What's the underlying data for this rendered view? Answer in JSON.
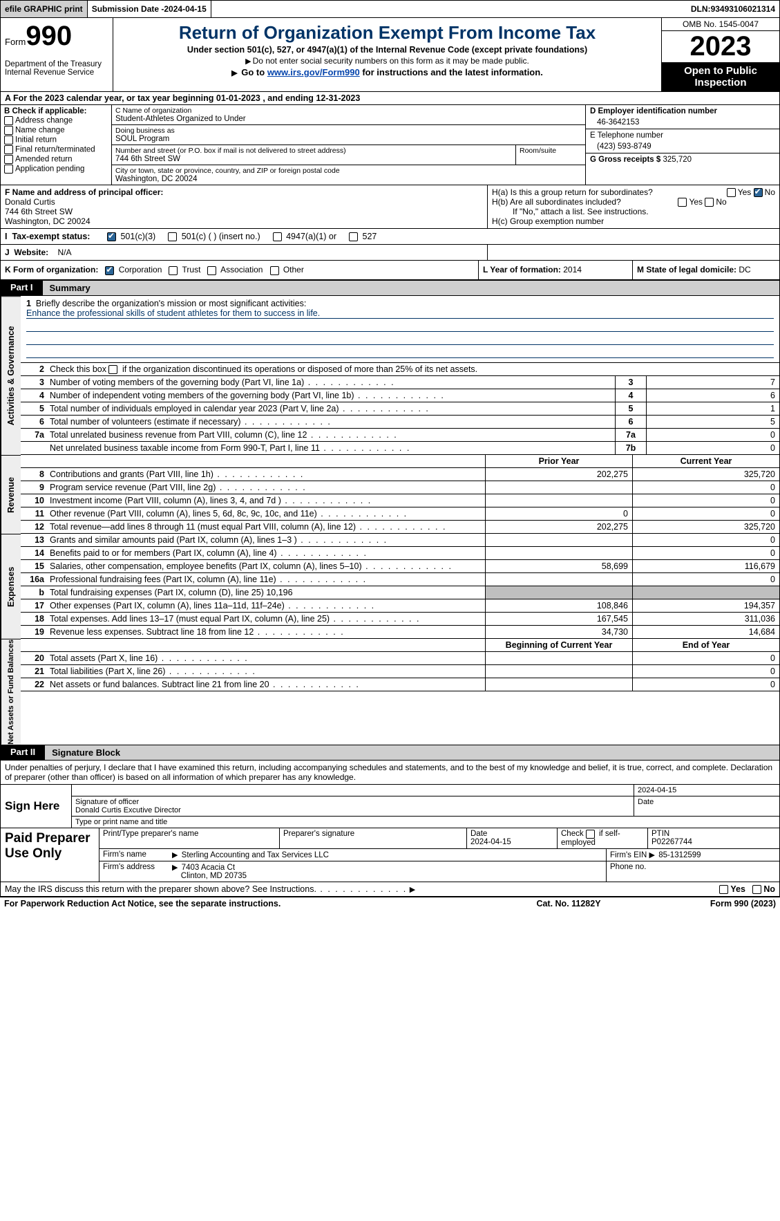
{
  "topbar": {
    "efile": "efile GRAPHIC print",
    "subdate_label": "Submission Date - ",
    "subdate": "2024-04-15",
    "dln_label": "DLN: ",
    "dln": "93493106021314"
  },
  "header": {
    "form_word": "Form",
    "form_num": "990",
    "dept": "Department of the Treasury\nInternal Revenue Service",
    "title": "Return of Organization Exempt From Income Tax",
    "subtitle": "Under section 501(c), 527, or 4947(a)(1) of the Internal Revenue Code (except private foundations)",
    "warn": "Do not enter social security numbers on this form as it may be made public.",
    "goto_pre": "Go to ",
    "goto_link": "www.irs.gov/Form990",
    "goto_post": " for instructions and the latest information.",
    "omb": "OMB No. 1545-0047",
    "year": "2023",
    "open": "Open to Public Inspection"
  },
  "rowA": {
    "text": "A For the 2023 calendar year, or tax year beginning 01-01-2023    , and ending 12-31-2023"
  },
  "colB": {
    "label": "B Check if applicable:",
    "opts": [
      "Address change",
      "Name change",
      "Initial return",
      "Final return/terminated",
      "Amended return",
      "Application pending"
    ]
  },
  "colC": {
    "name_lbl": "C Name of organization",
    "name": "Student-Athletes Organized to Under",
    "dba_lbl": "Doing business as",
    "dba": "SOUL Program",
    "street_lbl": "Number and street (or P.O. box if mail is not delivered to street address)",
    "street": "744 6th Street SW",
    "room_lbl": "Room/suite",
    "city_lbl": "City or town, state or province, country, and ZIP or foreign postal code",
    "city": "Washington, DC  20024"
  },
  "colD": {
    "ein_lbl": "D Employer identification number",
    "ein": "46-3642153",
    "tel_lbl": "E Telephone number",
    "tel": "(423) 593-8749",
    "gross_lbl": "G Gross receipts $ ",
    "gross": "325,720"
  },
  "F": {
    "lbl": "F  Name and address of principal officer:",
    "name": "Donald Curtis",
    "addr1": "744 6th Street SW",
    "addr2": "Washington, DC  20024"
  },
  "H": {
    "a": "H(a)  Is this a group return for subordinates?",
    "b": "H(b)  Are all subordinates included?",
    "note": "If \"No,\" attach a list. See instructions.",
    "c": "H(c)  Group exemption number",
    "yes": "Yes",
    "no": "No"
  },
  "I": {
    "lbl": "Tax-exempt status:",
    "o1": "501(c)(3)",
    "o2": "501(c) (  ) (insert no.)",
    "o3": "4947(a)(1) or",
    "o4": "527"
  },
  "J": {
    "lbl": "Website:",
    "val": "N/A"
  },
  "K": {
    "lbl": "K Form of organization:",
    "opts": [
      "Corporation",
      "Trust",
      "Association",
      "Other"
    ]
  },
  "L": {
    "lbl": "L Year of formation: ",
    "val": "2014"
  },
  "M": {
    "lbl": "M State of legal domicile: ",
    "val": "DC"
  },
  "partI": {
    "tab": "Part I",
    "title": "Summary"
  },
  "mission": {
    "q": "Briefly describe the organization's mission or most significant activities:",
    "text": "Enhance the professional skills of student athletes for them to success in life."
  },
  "line2": "Check this box  if the organization discontinued its operations or disposed of more than 25% of its net assets.",
  "gov_lines": [
    {
      "n": "3",
      "d": "Number of voting members of the governing body (Part VI, line 1a)",
      "k": "3",
      "v": "7"
    },
    {
      "n": "4",
      "d": "Number of independent voting members of the governing body (Part VI, line 1b)",
      "k": "4",
      "v": "6"
    },
    {
      "n": "5",
      "d": "Total number of individuals employed in calendar year 2023 (Part V, line 2a)",
      "k": "5",
      "v": "1"
    },
    {
      "n": "6",
      "d": "Total number of volunteers (estimate if necessary)",
      "k": "6",
      "v": "5"
    },
    {
      "n": "7a",
      "d": "Total unrelated business revenue from Part VIII, column (C), line 12",
      "k": "7a",
      "v": "0"
    },
    {
      "n": "",
      "d": "Net unrelated business taxable income from Form 990-T, Part I, line 11",
      "k": "7b",
      "v": "0"
    }
  ],
  "pycy_hdr": {
    "py": "Prior Year",
    "cy": "Current Year"
  },
  "rev_lines": [
    {
      "n": "8",
      "d": "Contributions and grants (Part VIII, line 1h)",
      "py": "202,275",
      "cy": "325,720"
    },
    {
      "n": "9",
      "d": "Program service revenue (Part VIII, line 2g)",
      "py": "",
      "cy": "0"
    },
    {
      "n": "10",
      "d": "Investment income (Part VIII, column (A), lines 3, 4, and 7d )",
      "py": "",
      "cy": "0"
    },
    {
      "n": "11",
      "d": "Other revenue (Part VIII, column (A), lines 5, 6d, 8c, 9c, 10c, and 11e)",
      "py": "0",
      "cy": "0"
    },
    {
      "n": "12",
      "d": "Total revenue—add lines 8 through 11 (must equal Part VIII, column (A), line 12)",
      "py": "202,275",
      "cy": "325,720"
    }
  ],
  "exp_lines": [
    {
      "n": "13",
      "d": "Grants and similar amounts paid (Part IX, column (A), lines 1–3 )",
      "py": "",
      "cy": "0"
    },
    {
      "n": "14",
      "d": "Benefits paid to or for members (Part IX, column (A), line 4)",
      "py": "",
      "cy": "0"
    },
    {
      "n": "15",
      "d": "Salaries, other compensation, employee benefits (Part IX, column (A), lines 5–10)",
      "py": "58,699",
      "cy": "116,679"
    },
    {
      "n": "16a",
      "d": "Professional fundraising fees (Part IX, column (A), line 11e)",
      "py": "",
      "cy": "0"
    },
    {
      "n": "b",
      "d": "Total fundraising expenses (Part IX, column (D), line 25) 10,196",
      "py": "GRAY",
      "cy": "GRAY"
    },
    {
      "n": "17",
      "d": "Other expenses (Part IX, column (A), lines 11a–11d, 11f–24e)",
      "py": "108,846",
      "cy": "194,357"
    },
    {
      "n": "18",
      "d": "Total expenses. Add lines 13–17 (must equal Part IX, column (A), line 25)",
      "py": "167,545",
      "cy": "311,036"
    },
    {
      "n": "19",
      "d": "Revenue less expenses. Subtract line 18 from line 12",
      "py": "34,730",
      "cy": "14,684"
    }
  ],
  "na_hdr": {
    "py": "Beginning of Current Year",
    "cy": "End of Year"
  },
  "na_lines": [
    {
      "n": "20",
      "d": "Total assets (Part X, line 16)",
      "py": "",
      "cy": "0"
    },
    {
      "n": "21",
      "d": "Total liabilities (Part X, line 26)",
      "py": "",
      "cy": "0"
    },
    {
      "n": "22",
      "d": "Net assets or fund balances. Subtract line 21 from line 20",
      "py": "",
      "cy": "0"
    }
  ],
  "sidelabels": {
    "gov": "Activities & Governance",
    "rev": "Revenue",
    "exp": "Expenses",
    "na": "Net Assets or Fund Balances"
  },
  "partII": {
    "tab": "Part II",
    "title": "Signature Block"
  },
  "decl": "Under penalties of perjury, I declare that I have examined this return, including accompanying schedules and statements, and to the best of my knowledge and belief, it is true, correct, and complete. Declaration of preparer (other than officer) is based on all information of which preparer has any knowledge.",
  "sign": {
    "here": "Sign Here",
    "date": "2024-04-15",
    "sig_lbl": "Signature of officer",
    "officer": "Donald Curtis  Excutive Director",
    "type_lbl": "Type or print name and title",
    "date_lbl": "Date"
  },
  "paid": {
    "lab": "Paid Preparer Use Only",
    "h1": "Print/Type preparer's name",
    "h2": "Preparer's signature",
    "h3": "Date",
    "h4": "Check         if self-employed",
    "h5": "PTIN",
    "date": "2024-04-15",
    "ptin": "P02267744",
    "firm_lbl": "Firm's name",
    "firm": "Sterling Accounting and Tax Services LLC",
    "ein_lbl": "Firm's EIN",
    "ein": "85-1312599",
    "addr_lbl": "Firm's address",
    "addr1": "7403 Acacia Ct",
    "addr2": "Clinton, MD  20735",
    "phone_lbl": "Phone no."
  },
  "may": {
    "text": "May the IRS discuss this return with the preparer shown above? See Instructions.",
    "yes": "Yes",
    "no": "No"
  },
  "foot": {
    "f1": "For Paperwork Reduction Act Notice, see the separate instructions.",
    "f2": "Cat. No. 11282Y",
    "f3": "Form 990 (2023)"
  }
}
